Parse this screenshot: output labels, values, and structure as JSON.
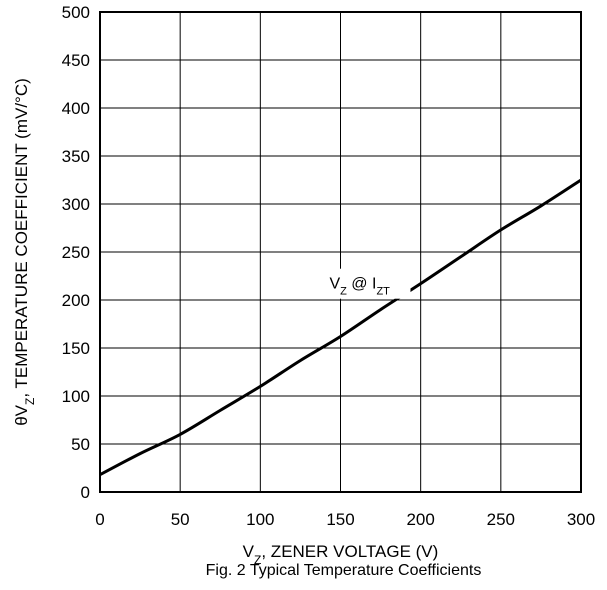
{
  "chart_data": {
    "type": "line",
    "title": "",
    "caption": "Fig. 2 Typical Temperature Coefficients",
    "xlabel": {
      "main": "V",
      "sub": "Z",
      "rest": ", ZENER VOLTAGE (V)"
    },
    "ylabel": {
      "main": "θV",
      "sub": "Z",
      "rest": ", TEMPERATURE COEFFICIENT (mV/°C)"
    },
    "xlim": [
      0,
      300
    ],
    "ylim": [
      0,
      500
    ],
    "xticks": [
      0,
      50,
      100,
      150,
      200,
      250,
      300
    ],
    "yticks": [
      0,
      50,
      100,
      150,
      200,
      250,
      300,
      350,
      400,
      450,
      500
    ],
    "grid": true,
    "annotation": {
      "v": "V",
      "v_sub": "Z",
      "at": " @ I",
      "i_sub": "ZT",
      "x": 140,
      "y": 218
    },
    "series": [
      {
        "x": [
          0,
          25,
          50,
          75,
          100,
          125,
          150,
          175,
          200,
          225,
          250,
          275,
          300
        ],
        "values": [
          18,
          40,
          60,
          85,
          110,
          137,
          162,
          190,
          217,
          245,
          273,
          298,
          325
        ]
      }
    ]
  }
}
